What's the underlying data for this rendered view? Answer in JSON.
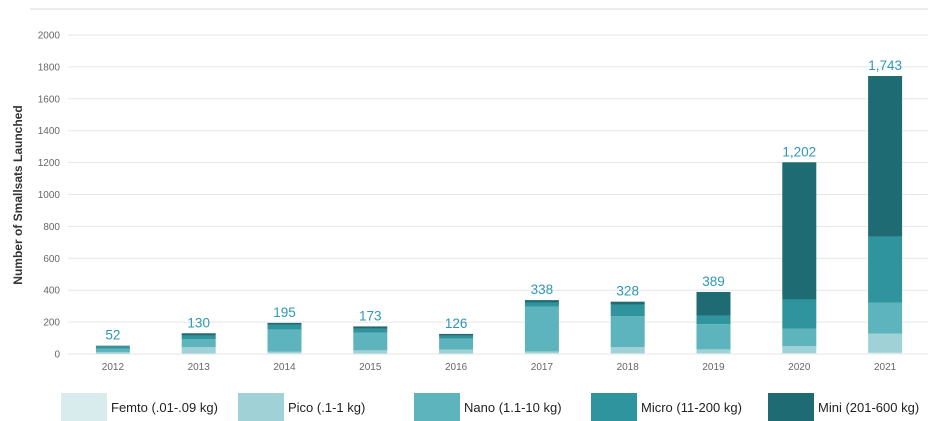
{
  "chart_data": {
    "type": "bar",
    "stacked": true,
    "ylabel": "Number of Smallsats Launched",
    "xlabel": "",
    "ylim": [
      0,
      2000
    ],
    "yticks": [
      0,
      200,
      400,
      600,
      800,
      1000,
      1200,
      1400,
      1600,
      1800,
      2000
    ],
    "grid": true,
    "legend_position": "bottom",
    "categories": [
      "2012",
      "2013",
      "2014",
      "2015",
      "2016",
      "2017",
      "2018",
      "2019",
      "2020",
      "2021"
    ],
    "series": [
      {
        "name": "Femto (.01-.09 kg)",
        "color": "#d8ecee",
        "values": [
          2,
          3,
          4,
          3,
          3,
          4,
          4,
          4,
          5,
          8
        ]
      },
      {
        "name": "Pico (.1-1 kg)",
        "color": "#9fd1d6",
        "values": [
          10,
          40,
          10,
          20,
          25,
          12,
          40,
          25,
          45,
          120
        ]
      },
      {
        "name": "Nano (1.1-10 kg)",
        "color": "#5db4bc",
        "values": [
          22,
          50,
          140,
          110,
          68,
          282,
          194,
          158,
          110,
          195
        ]
      },
      {
        "name": "Micro (11-200 kg)",
        "color": "#2f949d",
        "values": [
          14,
          22,
          31,
          25,
          18,
          25,
          72,
          54,
          182,
          413
        ]
      },
      {
        "name": "Mini (201-600 kg)",
        "color": "#1f6b73",
        "values": [
          4,
          15,
          10,
          15,
          12,
          15,
          18,
          148,
          860,
          1007
        ]
      }
    ],
    "totals": [
      "52",
      "130",
      "195",
      "173",
      "126",
      "338",
      "328",
      "389",
      "1,202",
      "1,743"
    ],
    "total_label_color": "#2e97b8"
  }
}
